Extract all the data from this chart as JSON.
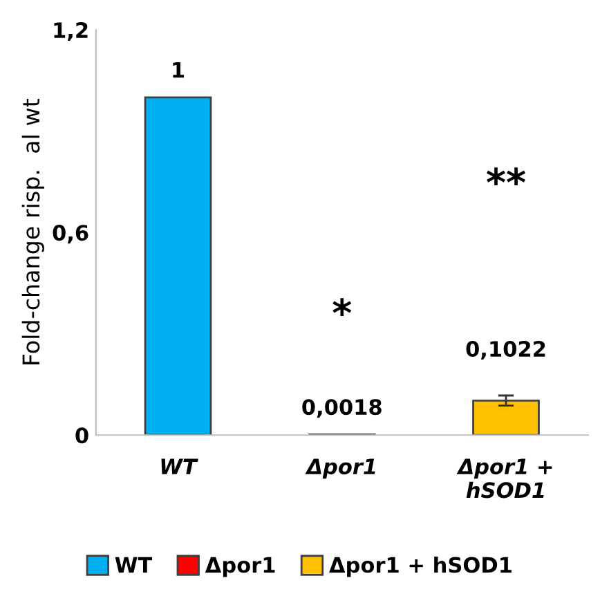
{
  "chart_data": {
    "type": "bar",
    "ylabel": "Fold-change risp.  al wt",
    "categories": [
      "WT",
      "Δpor1",
      "Δpor1 +\nhSOD1"
    ],
    "series": [
      {
        "name": "WT",
        "color": "#00b0f0",
        "values": [
          1,
          null,
          null
        ],
        "value_labels": [
          "1",
          null,
          null
        ]
      },
      {
        "name": "Δpor1",
        "color": "#ff0000",
        "values": [
          null,
          0.0018,
          null
        ],
        "value_labels": [
          null,
          "0,0018",
          null
        ]
      },
      {
        "name": "Δpor1 + hSOD1",
        "color": "#ffc000",
        "values": [
          null,
          null,
          0.1022
        ],
        "value_labels": [
          null,
          null,
          "0,1022"
        ],
        "errors": [
          null,
          null,
          0.015
        ]
      }
    ],
    "ylim": [
      0,
      1.2
    ],
    "yticks": [
      {
        "value": 0,
        "label": "0"
      },
      {
        "value": 0.6,
        "label": "0,6"
      },
      {
        "value": 1.2,
        "label": "1,2"
      }
    ],
    "annotations": [
      "*",
      "**"
    ],
    "legend": "bottom",
    "grid": false
  }
}
